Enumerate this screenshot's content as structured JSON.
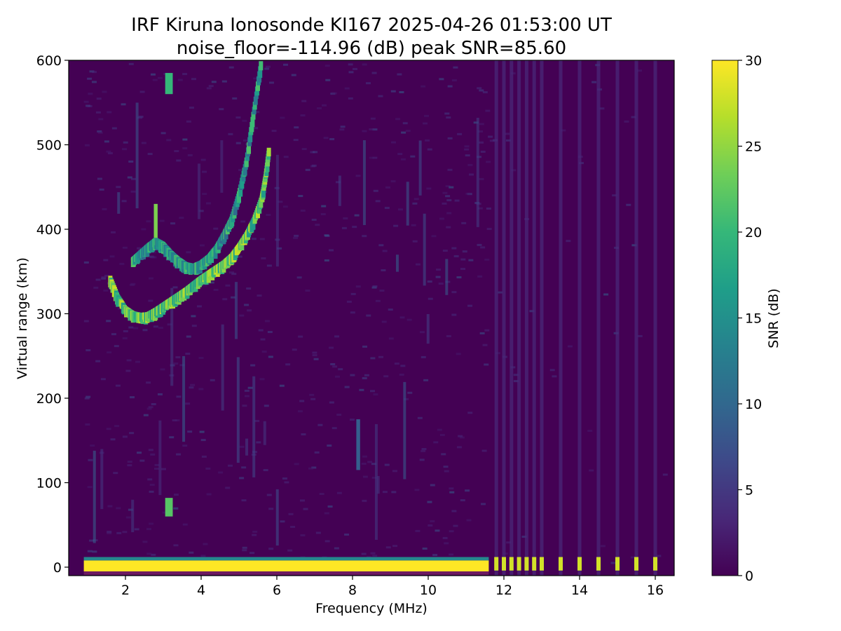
{
  "chart_data": {
    "type": "heatmap",
    "title": "IRF Kiruna Ionosonde KI167 2025-04-26 01:53:00  UT",
    "subtitle": "noise_floor=-114.96 (dB) peak SNR=85.60",
    "xlabel": "Frequency (MHz)",
    "ylabel": "Virtual range (km)",
    "colorbar_label": "SNR (dB)",
    "xlim": [
      0.5,
      16.5
    ],
    "ylim": [
      -10,
      600
    ],
    "clim": [
      0,
      30
    ],
    "colormap": "viridis",
    "grid": false,
    "x_ticks": [
      {
        "value": 2,
        "label": "2"
      },
      {
        "value": 4,
        "label": "4"
      },
      {
        "value": 6,
        "label": "6"
      },
      {
        "value": 8,
        "label": "8"
      },
      {
        "value": 10,
        "label": "10"
      },
      {
        "value": 12,
        "label": "12"
      },
      {
        "value": 14,
        "label": "14"
      },
      {
        "value": 16,
        "label": "16"
      }
    ],
    "y_ticks": [
      {
        "value": 0,
        "label": "0"
      },
      {
        "value": 100,
        "label": "100"
      },
      {
        "value": 200,
        "label": "200"
      },
      {
        "value": 300,
        "label": "300"
      },
      {
        "value": 400,
        "label": "400"
      },
      {
        "value": 500,
        "label": "500"
      },
      {
        "value": 600,
        "label": "600"
      }
    ],
    "colorbar_ticks": [
      {
        "value": 0,
        "label": "0"
      },
      {
        "value": 5,
        "label": "5"
      },
      {
        "value": 10,
        "label": "10"
      },
      {
        "value": 15,
        "label": "15"
      },
      {
        "value": 20,
        "label": "20"
      },
      {
        "value": 25,
        "label": "25"
      },
      {
        "value": 30,
        "label": "30"
      }
    ],
    "ground_echo_band": {
      "range_km": [
        -5,
        8
      ],
      "freq_mhz": [
        0.9,
        11.6
      ],
      "snr_db": 30
    },
    "discrete_channels_mhz": [
      11.8,
      12.0,
      12.2,
      12.4,
      12.6,
      12.8,
      13.0,
      13.5,
      14.0,
      14.5,
      15.0,
      15.5,
      16.0
    ],
    "o_trace": [
      {
        "f": 1.6,
        "r": 340
      },
      {
        "f": 1.8,
        "r": 318
      },
      {
        "f": 2.0,
        "r": 304
      },
      {
        "f": 2.2,
        "r": 298
      },
      {
        "f": 2.4,
        "r": 296
      },
      {
        "f": 2.6,
        "r": 297
      },
      {
        "f": 2.8,
        "r": 302
      },
      {
        "f": 3.0,
        "r": 308
      },
      {
        "f": 3.2,
        "r": 314
      },
      {
        "f": 3.4,
        "r": 320
      },
      {
        "f": 3.6,
        "r": 326
      },
      {
        "f": 3.8,
        "r": 333
      },
      {
        "f": 4.0,
        "r": 340
      },
      {
        "f": 4.2,
        "r": 346
      },
      {
        "f": 4.4,
        "r": 352
      },
      {
        "f": 4.6,
        "r": 358
      },
      {
        "f": 4.8,
        "r": 366
      },
      {
        "f": 5.0,
        "r": 378
      },
      {
        "f": 5.2,
        "r": 392
      },
      {
        "f": 5.4,
        "r": 410
      },
      {
        "f": 5.6,
        "r": 435
      },
      {
        "f": 5.7,
        "r": 460
      },
      {
        "f": 5.8,
        "r": 495
      }
    ],
    "x_trace": [
      {
        "f": 2.2,
        "r": 362
      },
      {
        "f": 2.4,
        "r": 370
      },
      {
        "f": 2.6,
        "r": 378
      },
      {
        "f": 2.8,
        "r": 385
      },
      {
        "f": 3.0,
        "r": 380
      },
      {
        "f": 3.2,
        "r": 370
      },
      {
        "f": 3.4,
        "r": 362
      },
      {
        "f": 3.6,
        "r": 356
      },
      {
        "f": 3.8,
        "r": 354
      },
      {
        "f": 4.0,
        "r": 358
      },
      {
        "f": 4.2,
        "r": 365
      },
      {
        "f": 4.4,
        "r": 376
      },
      {
        "f": 4.6,
        "r": 392
      },
      {
        "f": 4.8,
        "r": 410
      },
      {
        "f": 5.0,
        "r": 440
      },
      {
        "f": 5.2,
        "r": 480
      },
      {
        "f": 5.4,
        "r": 540
      },
      {
        "f": 5.6,
        "r": 600
      }
    ],
    "isolated_echoes": [
      {
        "f_range": [
          3.05,
          3.25
        ],
        "r_range": [
          60,
          82
        ],
        "snr_db": 22
      },
      {
        "f_range": [
          3.05,
          3.25
        ],
        "r_range": [
          560,
          585
        ],
        "snr_db": 20
      },
      {
        "f_range": [
          2.75,
          2.85
        ],
        "r_range": [
          390,
          430
        ],
        "snr_db": 24
      },
      {
        "f_range": [
          8.1,
          8.2
        ],
        "r_range": [
          115,
          175
        ],
        "snr_db": 9
      }
    ],
    "colors": {
      "background": "#440154",
      "viridis": [
        "#440154",
        "#482878",
        "#3e4989",
        "#31688e",
        "#26828e",
        "#1f9e89",
        "#35b779",
        "#6ece58",
        "#b5de2b",
        "#fde725"
      ]
    }
  }
}
